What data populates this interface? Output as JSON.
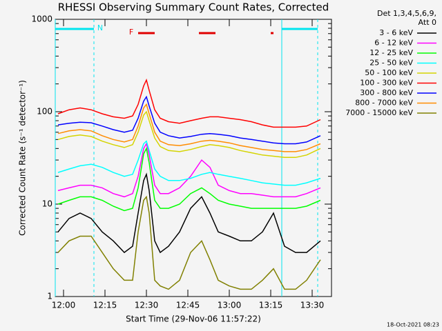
{
  "chart_data": {
    "type": "line",
    "title": "RHESSI Observing Summary Count Rates, Corrected",
    "ylabel": "Corrected Count Rate (s⁻¹ detector⁻¹)",
    "xlabel": "Start Time (29-Nov-06 11:57:22)",
    "footer": "18-Oct-2021 08:23",
    "legend_header": [
      "Det 1,3,4,5,6,9,",
      "Att 0"
    ],
    "log_y": true,
    "xlim": [
      "11:57",
      "13:37"
    ],
    "xticks": [
      "12:00",
      "12:15",
      "12:30",
      "12:45",
      "13:00",
      "13:15",
      "13:30"
    ],
    "ylim": [
      1,
      1000
    ],
    "yticks": [
      1,
      10,
      100,
      1000
    ],
    "night_label": "N",
    "night_intervals": [
      [
        "11:57",
        "12:11"
      ],
      [
        "13:19",
        "13:32"
      ]
    ],
    "night_color": "#00e5ee",
    "flare_label": "F",
    "flare_intervals": [
      [
        "12:27",
        "12:33"
      ],
      [
        "12:49",
        "12:55"
      ],
      [
        "13:15",
        "13:16"
      ]
    ],
    "flare_color": "#e00000",
    "x": [
      "11:58",
      "12:02",
      "12:06",
      "12:10",
      "12:14",
      "12:18",
      "12:22",
      "12:25",
      "12:27",
      "12:29",
      "12:30",
      "12:31",
      "12:33",
      "12:35",
      "12:38",
      "12:42",
      "12:46",
      "12:50",
      "12:53",
      "12:56",
      "13:00",
      "13:04",
      "13:08",
      "13:12",
      "13:16",
      "13:20",
      "13:24",
      "13:28",
      "13:33"
    ],
    "series": [
      {
        "name": "3 - 6 keV",
        "color": "#000000",
        "values": [
          5,
          7,
          8,
          7,
          5,
          4,
          3,
          3.5,
          8,
          18,
          21,
          14,
          4,
          3,
          3.5,
          5,
          9,
          12,
          8,
          5,
          4.5,
          4,
          4,
          5,
          8,
          3.5,
          3,
          3,
          4
        ]
      },
      {
        "name": "6 - 12 keV",
        "color": "#ff00ff",
        "values": [
          14,
          15,
          16,
          16,
          15,
          13,
          12,
          13,
          20,
          40,
          45,
          34,
          16,
          13,
          13,
          15,
          20,
          30,
          25,
          16,
          14,
          13,
          13,
          12.5,
          12,
          12,
          12,
          13,
          15
        ]
      },
      {
        "name": "12 - 25 keV",
        "color": "#00ff00",
        "values": [
          10,
          11,
          12,
          12,
          11,
          9.5,
          8.5,
          9,
          15,
          35,
          40,
          28,
          11,
          9,
          9,
          10,
          13,
          15,
          13,
          11,
          10,
          9.5,
          9,
          9,
          9,
          9,
          9,
          9.5,
          11
        ]
      },
      {
        "name": "25 - 50 keV",
        "color": "#00ffff",
        "values": [
          22,
          24,
          26,
          27,
          25,
          22,
          20,
          21,
          30,
          45,
          48,
          38,
          24,
          20,
          18,
          18,
          19,
          21,
          22,
          21,
          20,
          19,
          18,
          17,
          16.5,
          16,
          16,
          17,
          19
        ]
      },
      {
        "name": "50 - 100 keV",
        "color": "#d4d400",
        "values": [
          50,
          54,
          56,
          54,
          48,
          44,
          41,
          44,
          60,
          92,
          100,
          80,
          52,
          42,
          38,
          37,
          39,
          42,
          44,
          43,
          41,
          38,
          36,
          34,
          33,
          32,
          32,
          34,
          40
        ]
      },
      {
        "name": "100 - 300 keV",
        "color": "#ff0000",
        "values": [
          95,
          105,
          110,
          105,
          95,
          88,
          85,
          90,
          120,
          190,
          220,
          170,
          105,
          85,
          78,
          75,
          80,
          85,
          88,
          88,
          85,
          82,
          78,
          72,
          68,
          68,
          68,
          70,
          82
        ]
      },
      {
        "name": "300 - 800 keV",
        "color": "#0000ff",
        "values": [
          72,
          75,
          77,
          76,
          70,
          64,
          60,
          63,
          85,
          130,
          145,
          115,
          75,
          60,
          55,
          52,
          54,
          57,
          58,
          57,
          55,
          52,
          50,
          48,
          46,
          45,
          45,
          47,
          55
        ]
      },
      {
        "name": "800 - 7000 keV",
        "color": "#ff8c00",
        "values": [
          58,
          62,
          64,
          62,
          55,
          50,
          47,
          50,
          70,
          110,
          120,
          95,
          60,
          48,
          44,
          43,
          45,
          48,
          49,
          48,
          46,
          43,
          41,
          39,
          38,
          37,
          37,
          39,
          45
        ]
      },
      {
        "name": "7000 - 15000 keV",
        "color": "#808000",
        "values": [
          3,
          4,
          4.5,
          4.5,
          3,
          2,
          1.5,
          1.5,
          5,
          11,
          12,
          8,
          1.5,
          1.3,
          1.2,
          1.5,
          3,
          4,
          2.5,
          1.5,
          1.3,
          1.2,
          1.2,
          1.5,
          2,
          1.2,
          1.2,
          1.5,
          2.5
        ]
      }
    ]
  }
}
